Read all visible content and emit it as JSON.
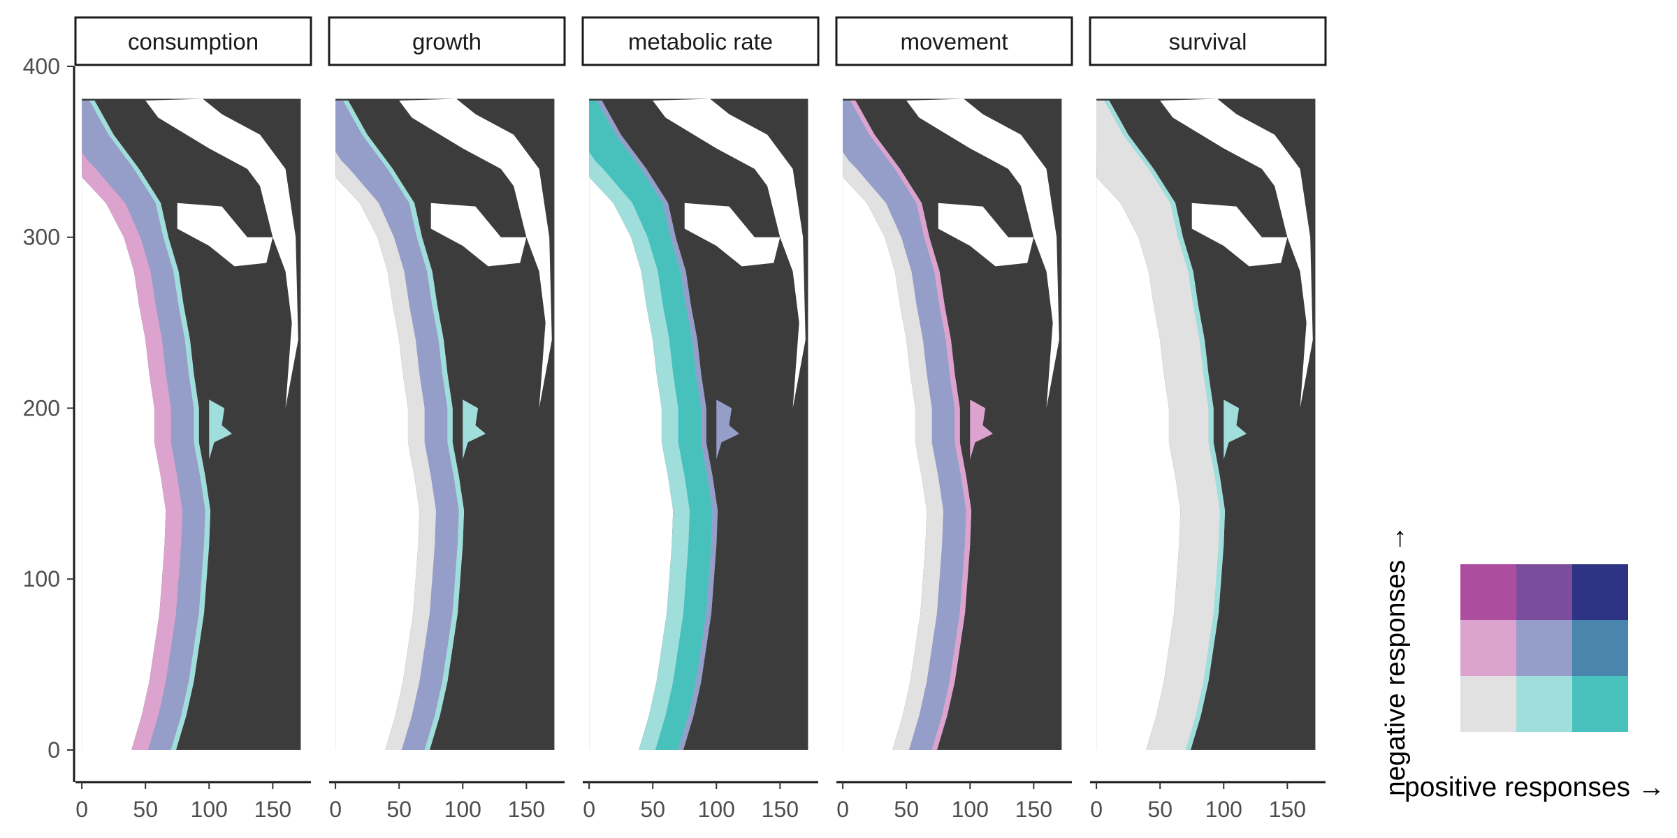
{
  "chart_data": {
    "type": "faceted-bivariate-map",
    "panels": [
      {
        "label": "consumption"
      },
      {
        "label": "growth"
      },
      {
        "label": "metabolic rate"
      },
      {
        "label": "movement"
      },
      {
        "label": "survival"
      }
    ],
    "x_ticks": [
      0,
      50,
      100,
      150
    ],
    "y_ticks": [
      0,
      100,
      200,
      300,
      400
    ],
    "xlim": [
      -5,
      180
    ],
    "ylim": [
      -18,
      400
    ],
    "coast_profile": [
      [
        0,
        74
      ],
      [
        20,
        82
      ],
      [
        40,
        88
      ],
      [
        60,
        92
      ],
      [
        80,
        96
      ],
      [
        100,
        98
      ],
      [
        120,
        100
      ],
      [
        140,
        101
      ],
      [
        160,
        97
      ],
      [
        180,
        92
      ],
      [
        200,
        92
      ],
      [
        220,
        88
      ],
      [
        240,
        85
      ],
      [
        260,
        80
      ],
      [
        280,
        76
      ],
      [
        300,
        68
      ],
      [
        320,
        62
      ],
      [
        340,
        45
      ],
      [
        360,
        25
      ],
      [
        380,
        10
      ]
    ],
    "panel_patterns": {
      "consumption": {
        "shelf": "#dca3cf",
        "fill": "#959dc9",
        "edge": "#a0dedb"
      },
      "growth": {
        "shelf": "#e1e1e1",
        "fill": "#959dc9",
        "edge": "#a0dedb"
      },
      "metabolic rate": {
        "shelf": "#a0dedb",
        "fill": "#48c1bd",
        "edge": "#959dc9"
      },
      "movement": {
        "shelf": "#e1e1e1",
        "fill": "#959dc9",
        "edge": "#dca3cf"
      },
      "survival": {
        "shelf": "#e1e1e1",
        "fill": "#e1e1e1",
        "edge": "#a0dedb"
      }
    },
    "legend": {
      "x_label": "positive responses →",
      "y_label": "negative responses →",
      "grid": [
        [
          "#ad4d9f",
          "#7b4d9c",
          "#2e3483"
        ],
        [
          "#dca3cf",
          "#959dc9",
          "#4985ad"
        ],
        [
          "#e1e1e1",
          "#a0dedb",
          "#48c1bd"
        ]
      ]
    },
    "colors": {
      "land": "#3c3c3c",
      "inland_water": "#ffffff"
    }
  }
}
